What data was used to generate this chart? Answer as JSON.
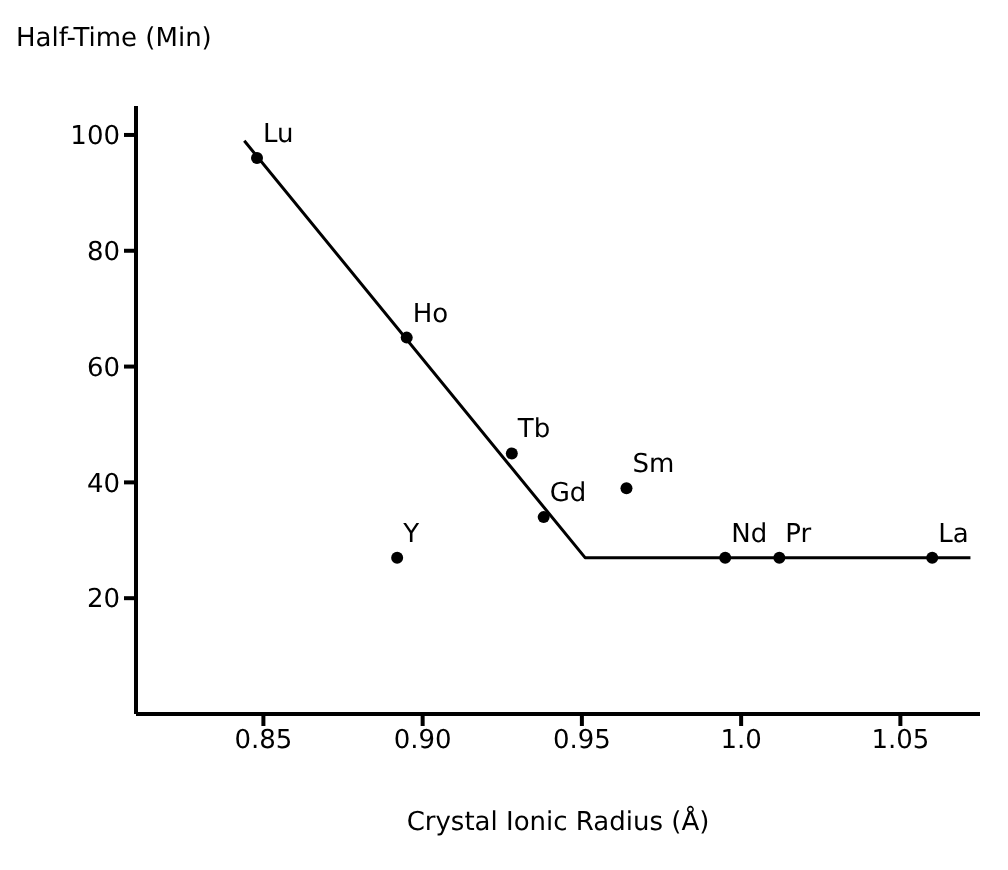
{
  "chart_data": {
    "type": "scatter",
    "ylabel": "Half-Time (Min)",
    "xlabel": "Crystal Ionic Radius  (Å)",
    "xlim": [
      0.81,
      1.075
    ],
    "ylim": [
      0,
      105
    ],
    "xticks": [
      0.85,
      {
        "value": 0.9,
        "label": "0.90"
      },
      0.95,
      {
        "value": 1.0,
        "label": "1.0"
      },
      1.05
    ],
    "yticks": [
      20,
      40,
      60,
      80,
      100
    ],
    "grid": false,
    "legend": false,
    "marker": "circle",
    "series": [
      {
        "color": "#000000",
        "x": [
          0.848,
          0.895,
          0.928,
          0.938,
          0.892,
          0.964,
          0.995,
          1.012,
          1.06
        ],
        "values": [
          96,
          65,
          45,
          34,
          27,
          39,
          27,
          27,
          27
        ]
      },
      {
        "type": "line",
        "color": "#000000",
        "marker": "none",
        "line_style": "solid",
        "x": [
          0.844,
          0.951,
          1.072
        ],
        "values": [
          99,
          27,
          27
        ]
      }
    ],
    "annotations": [
      {
        "text": "Lu",
        "x": 0.848,
        "y": 96
      },
      {
        "text": "Ho",
        "x": 0.895,
        "y": 65
      },
      {
        "text": "Tb",
        "x": 0.928,
        "y": 45
      },
      {
        "text": "Gd",
        "x": 0.938,
        "y": 34
      },
      {
        "text": "Y",
        "x": 0.892,
        "y": 27
      },
      {
        "text": "Sm",
        "x": 0.964,
        "y": 39
      },
      {
        "text": "Nd",
        "x": 0.995,
        "y": 27
      },
      {
        "text": "Pr",
        "x": 1.012,
        "y": 27
      },
      {
        "text": "La",
        "x": 1.06,
        "y": 27
      }
    ]
  }
}
